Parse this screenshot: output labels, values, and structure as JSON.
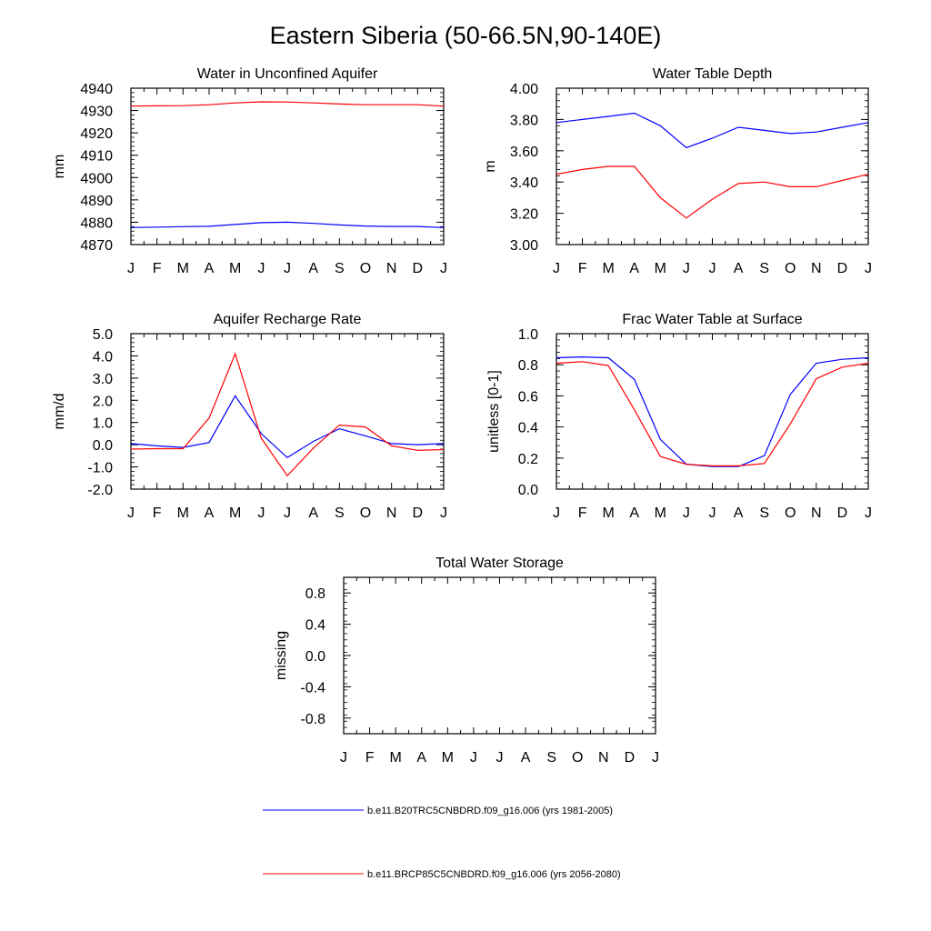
{
  "figure": {
    "title": "Eastern Siberia (50-66.5N,90-140E)"
  },
  "chart_data": [
    {
      "type": "line",
      "title": "Water in Unconfined Aquifer",
      "ylabel": "mm",
      "xlabel": "",
      "x": [
        "J",
        "F",
        "M",
        "A",
        "M",
        "J",
        "J",
        "A",
        "S",
        "O",
        "N",
        "D",
        "J"
      ],
      "ylim": [
        4870,
        4940
      ],
      "yticks": [
        "4870",
        "4880",
        "4890",
        "4900",
        "4910",
        "4920",
        "4930",
        "4940"
      ],
      "grid": false,
      "series": [
        {
          "name": "b.e11.B20TRC5CNBDRD.f09_g16.006 (yrs 1981-2005)",
          "color": "#0000ff",
          "values": [
            4877.6,
            4877.8,
            4878.0,
            4878.2,
            4879.0,
            4879.8,
            4880.0,
            4879.5,
            4878.8,
            4878.3,
            4878.1,
            4878.1,
            4877.6
          ]
        },
        {
          "name": "b.e11.BRCP85C5CNBDRD.f09_g16.006 (yrs 2056-2080)",
          "color": "#ff0000",
          "values": [
            4932.0,
            4932.1,
            4932.2,
            4932.6,
            4933.4,
            4933.9,
            4933.8,
            4933.4,
            4932.9,
            4932.6,
            4932.6,
            4932.6,
            4932.0
          ]
        }
      ]
    },
    {
      "type": "line",
      "title": "Water Table Depth",
      "ylabel": "m",
      "xlabel": "",
      "x": [
        "J",
        "F",
        "M",
        "A",
        "M",
        "J",
        "J",
        "A",
        "S",
        "O",
        "N",
        "D",
        "J"
      ],
      "ylim": [
        3.0,
        4.0
      ],
      "yticks": [
        "3.00",
        "3.20",
        "3.40",
        "3.60",
        "3.80",
        "4.00"
      ],
      "grid": false,
      "series": [
        {
          "name": "b.e11.B20TRC5CNBDRD.f09_g16.006 (yrs 1981-2005)",
          "color": "#0000ff",
          "values": [
            3.78,
            3.8,
            3.82,
            3.84,
            3.76,
            3.62,
            3.68,
            3.75,
            3.73,
            3.71,
            3.72,
            3.75,
            3.78
          ]
        },
        {
          "name": "b.e11.BRCP85C5CNBDRD.f09_g16.006 (yrs 2056-2080)",
          "color": "#ff0000",
          "values": [
            3.45,
            3.48,
            3.5,
            3.5,
            3.3,
            3.17,
            3.29,
            3.39,
            3.4,
            3.37,
            3.37,
            3.41,
            3.45
          ]
        }
      ]
    },
    {
      "type": "line",
      "title": "Aquifer Recharge Rate",
      "ylabel": "mm/d",
      "xlabel": "",
      "x": [
        "J",
        "F",
        "M",
        "A",
        "M",
        "J",
        "J",
        "A",
        "S",
        "O",
        "N",
        "D",
        "J"
      ],
      "ylim": [
        -2.0,
        5.0
      ],
      "yticks": [
        "-2.0",
        "-1.0",
        "0.0",
        "1.0",
        "2.0",
        "3.0",
        "4.0",
        "5.0"
      ],
      "grid": false,
      "series": [
        {
          "name": "b.e11.B20TRC5CNBDRD.f09_g16.006 (yrs 1981-2005)",
          "color": "#0000ff",
          "values": [
            0.05,
            -0.05,
            -0.12,
            0.1,
            2.2,
            0.5,
            -0.58,
            0.15,
            0.72,
            0.4,
            0.05,
            0.0,
            0.05
          ]
        },
        {
          "name": "b.e11.BRCP85C5CNBDRD.f09_g16.006 (yrs 2056-2080)",
          "color": "#ff0000",
          "values": [
            -0.2,
            -0.18,
            -0.18,
            1.2,
            4.1,
            0.3,
            -1.4,
            -0.15,
            0.88,
            0.8,
            -0.05,
            -0.25,
            -0.22
          ]
        }
      ]
    },
    {
      "type": "line",
      "title": "Frac Water Table at Surface",
      "ylabel": "unitless [0-1]",
      "xlabel": "",
      "x": [
        "J",
        "F",
        "M",
        "A",
        "M",
        "J",
        "J",
        "A",
        "S",
        "O",
        "N",
        "D",
        "J"
      ],
      "ylim": [
        0.0,
        1.0
      ],
      "yticks": [
        "0.0",
        "0.2",
        "0.4",
        "0.6",
        "0.8",
        "1.0"
      ],
      "grid": false,
      "series": [
        {
          "name": "b.e11.B20TRC5CNBDRD.f09_g16.006 (yrs 1981-2005)",
          "color": "#0000ff",
          "values": [
            0.845,
            0.85,
            0.845,
            0.705,
            0.32,
            0.16,
            0.145,
            0.145,
            0.215,
            0.61,
            0.81,
            0.835,
            0.845
          ]
        },
        {
          "name": "b.e11.BRCP85C5CNBDRD.f09_g16.006 (yrs 2056-2080)",
          "color": "#ff0000",
          "values": [
            0.81,
            0.82,
            0.795,
            0.51,
            0.21,
            0.16,
            0.15,
            0.15,
            0.165,
            0.42,
            0.71,
            0.785,
            0.81
          ]
        }
      ]
    },
    {
      "type": "line",
      "title": "Total Water Storage",
      "ylabel": "missing",
      "xlabel": "",
      "x": [
        "J",
        "F",
        "M",
        "A",
        "M",
        "J",
        "J",
        "A",
        "S",
        "O",
        "N",
        "D",
        "J"
      ],
      "ylim": [
        -1.0,
        1.0
      ],
      "yticks": [
        "-0.8",
        "-0.4",
        "0.0",
        "0.4",
        "0.8"
      ],
      "grid": false,
      "series": []
    }
  ],
  "legend": {
    "placement": "bottom",
    "entries": [
      {
        "label": "b.e11.B20TRC5CNBDRD.f09_g16.006 (yrs 1981-2005)",
        "color": "#0000ff"
      },
      {
        "label": "b.e11.BRCP85C5CNBDRD.f09_g16.006 (yrs 2056-2080)",
        "color": "#ff0000"
      }
    ]
  }
}
